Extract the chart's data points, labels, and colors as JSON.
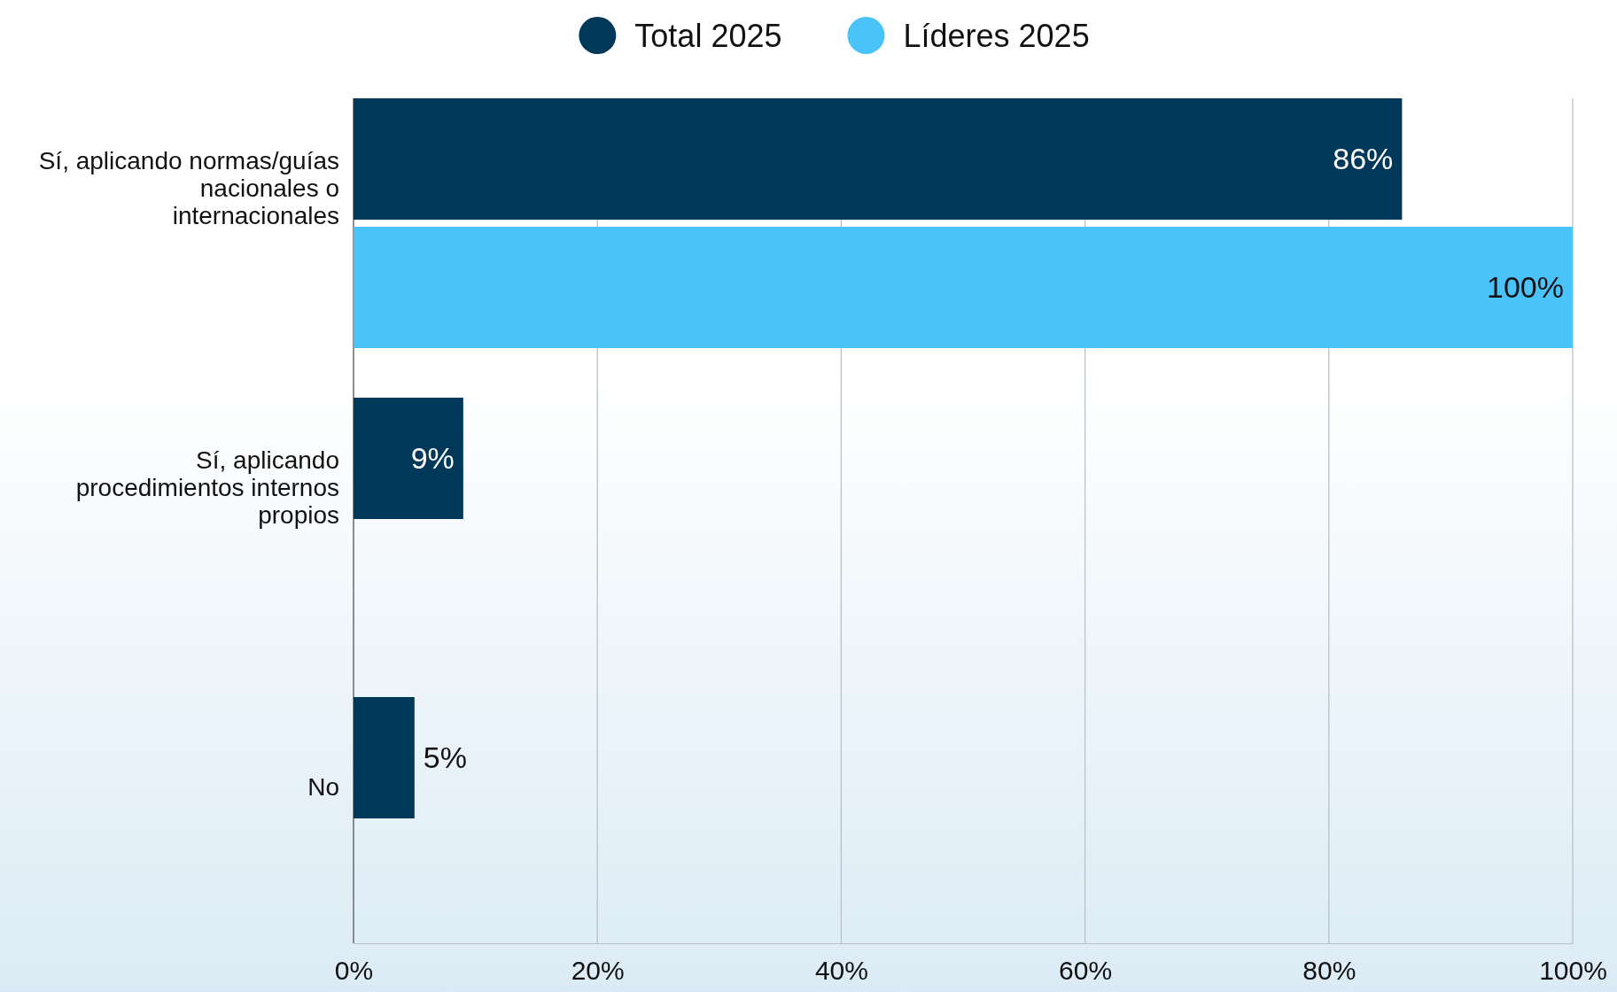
{
  "chart_data": {
    "type": "bar",
    "orientation": "horizontal",
    "categories": [
      "Sí, aplicando normas/guías nacionales o internacionales",
      "Sí, aplicando procedimientos internos propios",
      "No"
    ],
    "series": [
      {
        "name": "Total 2025",
        "color": "#003859",
        "values": [
          86,
          9,
          5
        ],
        "value_labels": [
          "86%",
          "9%",
          "5%"
        ]
      },
      {
        "name": "Líderes 2025",
        "color": "#4ac3fb",
        "values": [
          100,
          null,
          null
        ],
        "value_labels": [
          "100%",
          null,
          null
        ]
      }
    ],
    "xlim": [
      0,
      100
    ],
    "xticks": [
      {
        "value": 0,
        "label": "0%"
      },
      {
        "value": 20,
        "label": "20%"
      },
      {
        "value": 40,
        "label": "40%"
      },
      {
        "value": 60,
        "label": "60%"
      },
      {
        "value": 80,
        "label": "80%"
      },
      {
        "value": 100,
        "label": "100%"
      }
    ],
    "grid": "x",
    "legend": "top"
  }
}
